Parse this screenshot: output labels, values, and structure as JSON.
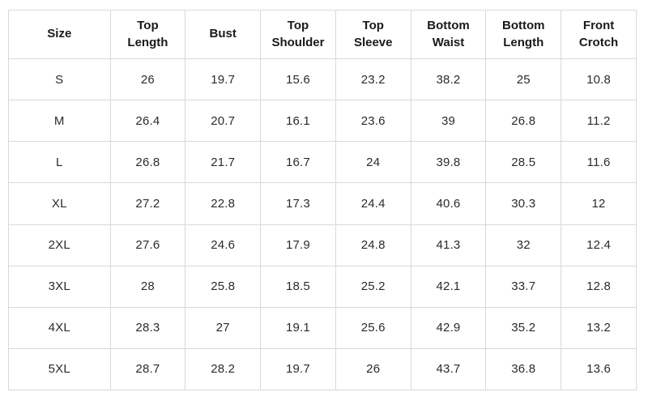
{
  "colors": {
    "background": "#ffffff",
    "grid_border": "#d9d9d9",
    "header_text": "#1a1a1a",
    "cell_text": "#2b2b2b"
  },
  "table": {
    "header": [
      "Size",
      "Top Length",
      "Bust",
      "Top Shoulder",
      "Top Sleeve",
      "Bottom Waist",
      "Bottom Length",
      "Front Crotch"
    ],
    "rows": [
      {
        "cells": [
          "S",
          "26",
          "19.7",
          "15.6",
          "23.2",
          "38.2",
          "25",
          "10.8"
        ]
      },
      {
        "cells": [
          "M",
          "26.4",
          "20.7",
          "16.1",
          "23.6",
          "39",
          "26.8",
          "11.2"
        ]
      },
      {
        "cells": [
          "L",
          "26.8",
          "21.7",
          "16.7",
          "24",
          "39.8",
          "28.5",
          "11.6"
        ]
      },
      {
        "cells": [
          "XL",
          "27.2",
          "22.8",
          "17.3",
          "24.4",
          "40.6",
          "30.3",
          "12"
        ]
      },
      {
        "cells": [
          "2XL",
          "27.6",
          "24.6",
          "17.9",
          "24.8",
          "41.3",
          "32",
          "12.4"
        ]
      },
      {
        "cells": [
          "3XL",
          "28",
          "25.8",
          "18.5",
          "25.2",
          "42.1",
          "33.7",
          "12.8"
        ]
      },
      {
        "cells": [
          "4XL",
          "28.3",
          "27",
          "19.1",
          "25.6",
          "42.9",
          "35.2",
          "13.2"
        ]
      },
      {
        "cells": [
          "5XL",
          "28.7",
          "28.2",
          "19.7",
          "26",
          "43.7",
          "36.8",
          "13.6"
        ]
      }
    ]
  },
  "chart_data": {
    "type": "table",
    "title": "",
    "columns": [
      "Size",
      "Top Length",
      "Bust",
      "Top Shoulder",
      "Top Sleeve",
      "Bottom Waist",
      "Bottom Length",
      "Front Crotch"
    ],
    "rows": [
      [
        "S",
        26,
        19.7,
        15.6,
        23.2,
        38.2,
        25,
        10.8
      ],
      [
        "M",
        26.4,
        20.7,
        16.1,
        23.6,
        39,
        26.8,
        11.2
      ],
      [
        "L",
        26.8,
        21.7,
        16.7,
        24,
        39.8,
        28.5,
        11.6
      ],
      [
        "XL",
        27.2,
        22.8,
        17.3,
        24.4,
        40.6,
        30.3,
        12
      ],
      [
        "2XL",
        27.6,
        24.6,
        17.9,
        24.8,
        41.3,
        32,
        12.4
      ],
      [
        "3XL",
        28,
        25.8,
        18.5,
        25.2,
        42.1,
        33.7,
        12.8
      ],
      [
        "4XL",
        28.3,
        27,
        19.1,
        25.6,
        42.9,
        35.2,
        13.2
      ],
      [
        "5XL",
        28.7,
        28.2,
        19.7,
        26,
        43.7,
        36.8,
        13.6
      ]
    ]
  }
}
